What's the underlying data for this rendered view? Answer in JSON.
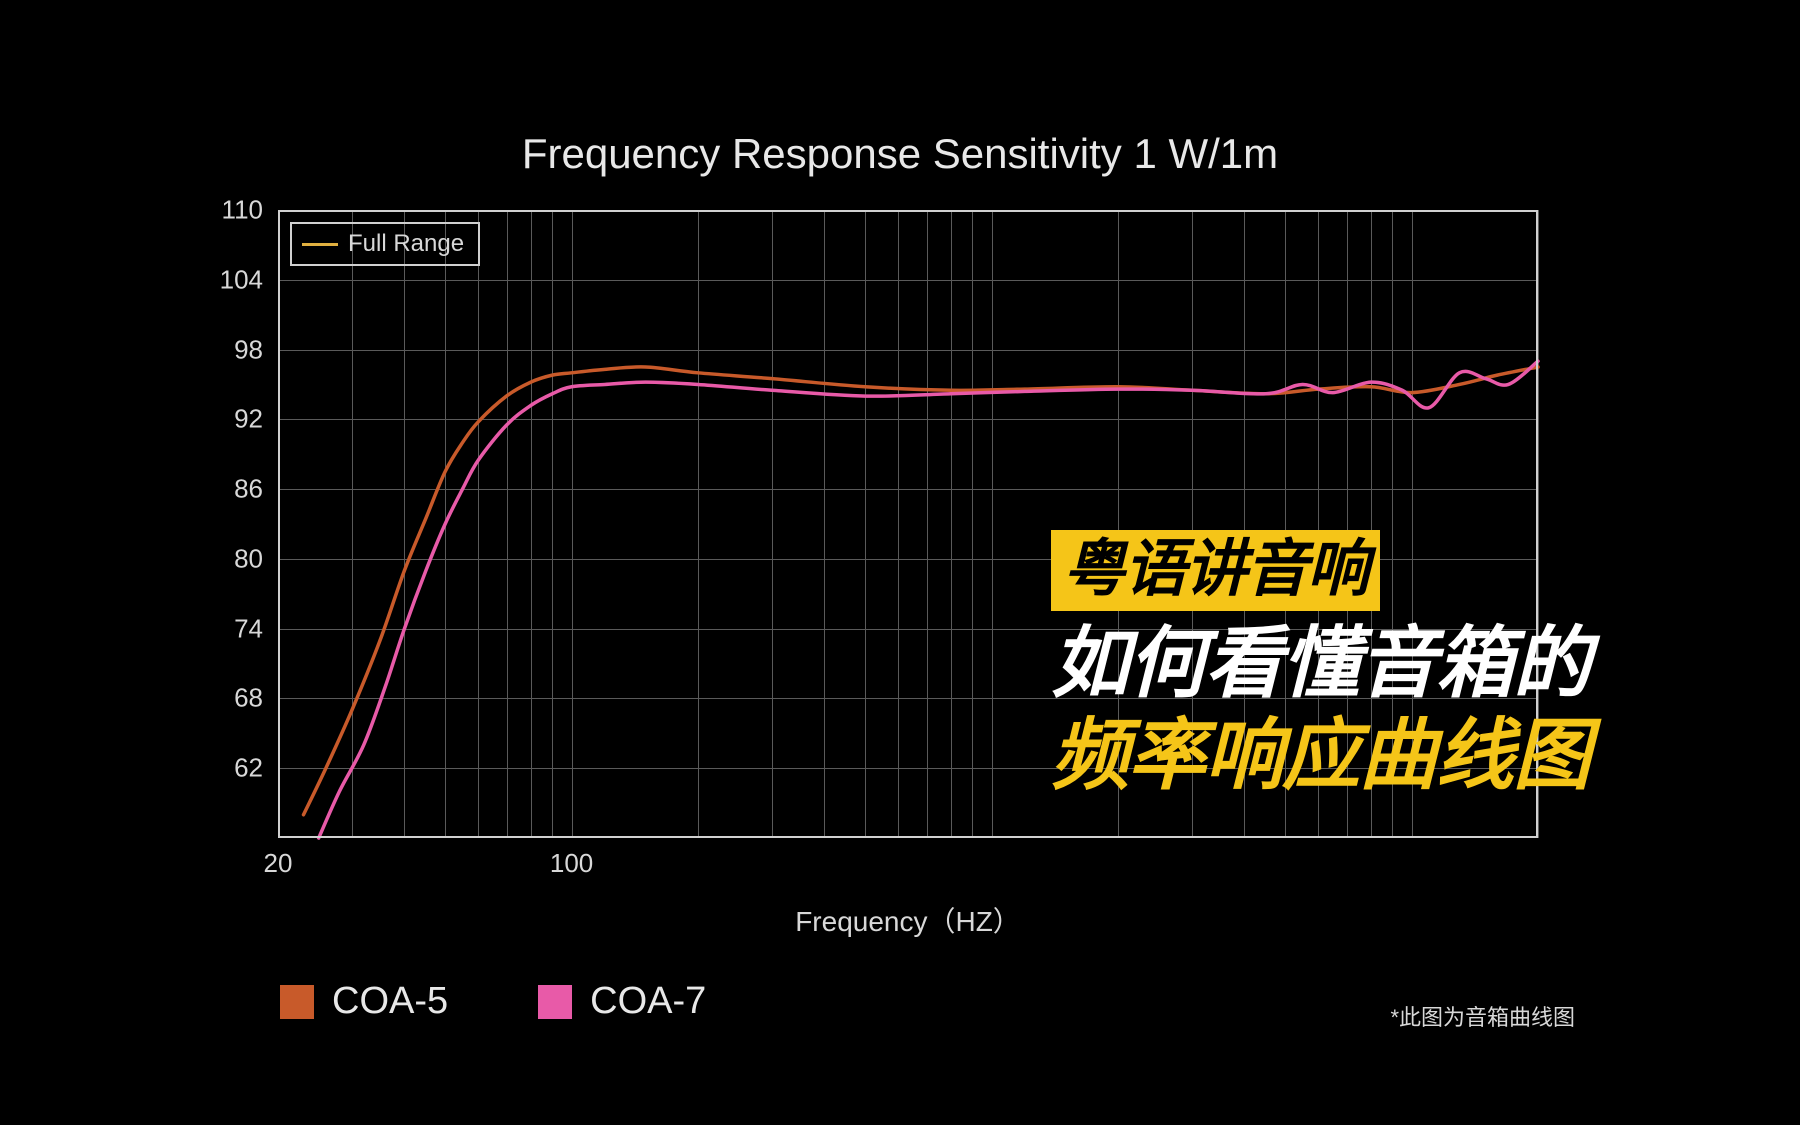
{
  "title": "Frequency Response Sensitivity 1 W/1m",
  "chart": {
    "type": "line",
    "xlabel": "Frequency（HZ）",
    "xscale": "log",
    "xlim": [
      20,
      20000
    ],
    "ylim": [
      56,
      110
    ],
    "xticks": [
      20,
      100,
      1000
    ],
    "xtick_labels": [
      "20",
      "100",
      ""
    ],
    "yticks": [
      62,
      68,
      74,
      80,
      86,
      92,
      98,
      104,
      110
    ],
    "ytick_labels": [
      "62",
      "68",
      "74",
      "80",
      "86",
      "92",
      "98",
      "104",
      "110"
    ],
    "h_gridlines": [
      62,
      68,
      74,
      80,
      86,
      92,
      98,
      104
    ],
    "v_gridlines": [
      30,
      40,
      50,
      60,
      70,
      80,
      90,
      100,
      200,
      300,
      400,
      500,
      600,
      700,
      800,
      900,
      1000,
      2000,
      3000,
      4000,
      5000,
      6000,
      7000,
      8000,
      9000,
      10000,
      20000
    ],
    "grid_color": "#5a5a5a",
    "border_color": "#d0d0d0",
    "background_color": "#000000",
    "text_color": "#d8d8d8",
    "title_fontsize": 42,
    "tick_fontsize": 26,
    "label_fontsize": 28,
    "inset_legend": {
      "label": "Full Range",
      "line_color": "#e0b040",
      "border_color": "#d0d0d0"
    },
    "series": [
      {
        "name": "COA-5",
        "color": "#c85a2a",
        "line_width": 3.5,
        "x": [
          23,
          26,
          30,
          35,
          40,
          45,
          50,
          55,
          60,
          70,
          80,
          90,
          100,
          120,
          150,
          200,
          300,
          500,
          800,
          1200,
          2000,
          3000,
          4500,
          6000,
          8000,
          10000,
          13000,
          16000,
          20000
        ],
        "y": [
          58,
          62,
          67,
          73,
          79,
          83.5,
          87.5,
          90,
          91.8,
          94,
          95.2,
          95.8,
          96,
          96.3,
          96.5,
          96,
          95.5,
          94.8,
          94.5,
          94.6,
          94.8,
          94.5,
          94.2,
          94.6,
          94.8,
          94.3,
          95,
          95.8,
          96.5
        ]
      },
      {
        "name": "COA-7",
        "color": "#e85aa8",
        "line_width": 3.5,
        "x": [
          25,
          28,
          32,
          36,
          40,
          45,
          50,
          55,
          60,
          70,
          80,
          90,
          100,
          120,
          150,
          200,
          300,
          500,
          800,
          1200,
          2000,
          3000,
          4500,
          5500,
          6500,
          8000,
          9500,
          11000,
          13000,
          15000,
          17000,
          20000
        ],
        "y": [
          56,
          60,
          64,
          69,
          74,
          79,
          83,
          86,
          88.5,
          91.5,
          93.2,
          94.2,
          94.8,
          95,
          95.2,
          95,
          94.5,
          94,
          94.2,
          94.4,
          94.6,
          94.5,
          94.2,
          95,
          94.3,
          95.2,
          94.5,
          93,
          96,
          95.5,
          95,
          97
        ]
      }
    ]
  },
  "bottom_legend": {
    "items": [
      {
        "label": "COA-5",
        "color": "#c85a2a"
      },
      {
        "label": "COA-7",
        "color": "#e85aa8"
      }
    ],
    "label_color": "#e8e8e8",
    "label_fontsize": 38
  },
  "footnote": "*此图为音箱曲线图",
  "overlay": {
    "badge": "粤语讲音响",
    "badge_bg": "#f5c518",
    "badge_color": "#000000",
    "line2": "如何看懂音箱的",
    "line2_color": "#ffffff",
    "line3": "频率响应曲线图",
    "line3_color": "#f5c518",
    "fontsize_badge": 62,
    "fontsize_lines": 78
  }
}
